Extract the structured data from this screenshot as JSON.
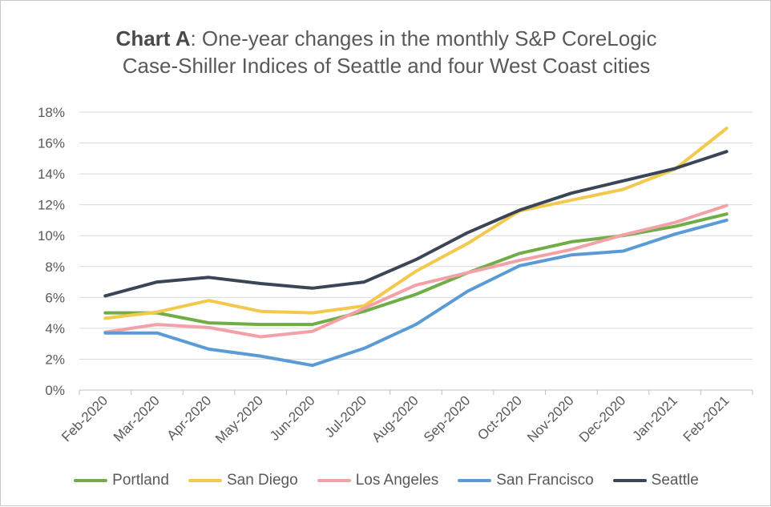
{
  "chart_data": {
    "type": "line",
    "title_bold": "Chart A",
    "title_rest": ": One-year changes in the monthly S&P CoreLogic",
    "title_line2": "Case-Shiller Indices of Seattle and four West Coast cities",
    "x": [
      "Feb-2020",
      "Mar-2020",
      "Apr-2020",
      "May-2020",
      "Jun-2020",
      "Jul-2020",
      "Aug-2020",
      "Sep-2020",
      "Oct-2020",
      "Nov-2020",
      "Dec-2020",
      "Jan-2021",
      "Feb-2021"
    ],
    "ylim": [
      0,
      18
    ],
    "yticks": [
      "0%",
      "2%",
      "4%",
      "6%",
      "8%",
      "10%",
      "12%",
      "14%",
      "16%",
      "18%"
    ],
    "grid": true,
    "legend_position": "bottom",
    "series": [
      {
        "name": "Portland",
        "color": "#70ad47",
        "values": [
          5.0,
          5.0,
          4.35,
          4.25,
          4.25,
          5.1,
          6.2,
          7.6,
          8.85,
          9.6,
          10.0,
          10.6,
          11.4
        ]
      },
      {
        "name": "San Diego",
        "color": "#f2c94c",
        "values": [
          4.65,
          5.05,
          5.8,
          5.1,
          5.0,
          5.45,
          7.7,
          9.5,
          11.6,
          12.3,
          13.0,
          14.3,
          16.95
        ]
      },
      {
        "name": "Los Angeles",
        "color": "#f4a0a8",
        "values": [
          3.75,
          4.25,
          4.05,
          3.45,
          3.8,
          5.3,
          6.8,
          7.6,
          8.4,
          9.1,
          10.05,
          10.85,
          11.95
        ]
      },
      {
        "name": "San Francisco",
        "color": "#5b9bd5",
        "values": [
          3.7,
          3.7,
          2.65,
          2.2,
          1.6,
          2.7,
          4.25,
          6.4,
          8.05,
          8.75,
          9.0,
          10.1,
          11.0
        ]
      },
      {
        "name": "Seattle",
        "color": "#3a4556",
        "values": [
          6.1,
          7.0,
          7.3,
          6.9,
          6.6,
          7.0,
          8.45,
          10.2,
          11.65,
          12.75,
          13.55,
          14.35,
          15.45
        ]
      }
    ]
  }
}
